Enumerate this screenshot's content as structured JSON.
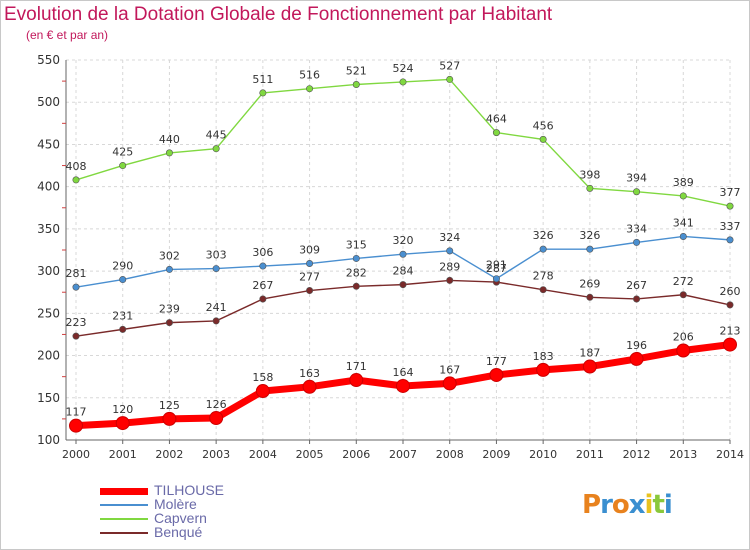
{
  "title": "Evolution de la Dotation Globale de Fonctionnement par Habitant",
  "subtitle": "(en € et par an)",
  "chart_data": {
    "type": "line",
    "x": [
      2000,
      2001,
      2002,
      2003,
      2004,
      2005,
      2006,
      2007,
      2008,
      2009,
      2010,
      2011,
      2012,
      2013,
      2014
    ],
    "ylim": [
      100,
      550
    ],
    "yticks": [
      100,
      150,
      200,
      250,
      300,
      350,
      400,
      450,
      500,
      550
    ],
    "grid": true,
    "legend_position": "bottom-left",
    "series": [
      {
        "name": "TILHOUSE",
        "color": "#ff0000",
        "values": [
          117,
          120,
          125,
          126,
          158,
          163,
          171,
          164,
          167,
          177,
          183,
          187,
          196,
          206,
          213
        ]
      },
      {
        "name": "Molère",
        "color": "#4a8fd0",
        "values": [
          281,
          290,
          302,
          303,
          306,
          309,
          315,
          320,
          324,
          291,
          326,
          326,
          334,
          341,
          337
        ]
      },
      {
        "name": "Capvern",
        "color": "#80d840",
        "values": [
          408,
          425,
          440,
          445,
          511,
          516,
          521,
          524,
          527,
          464,
          456,
          398,
          394,
          389,
          377
        ]
      },
      {
        "name": "Benqué",
        "color": "#7a2a2a",
        "values": [
          223,
          231,
          239,
          241,
          267,
          277,
          282,
          284,
          289,
          287,
          278,
          269,
          267,
          272,
          260
        ]
      }
    ]
  },
  "legend": [
    {
      "label": "TILHOUSE",
      "color": "#ff0000"
    },
    {
      "label": "Molère",
      "color": "#4a8fd0"
    },
    {
      "label": "Capvern",
      "color": "#80d840"
    },
    {
      "label": "Benqué",
      "color": "#7a2a2a"
    }
  ],
  "logo": {
    "letters": [
      "P",
      "r",
      "o",
      "x",
      "i",
      "t",
      "i"
    ],
    "colors": [
      "#e8821e",
      "#3a8fd0",
      "#e8821e",
      "#3a8fd0",
      "#e8c21e",
      "#8ac83a",
      "#3a8fd0"
    ]
  }
}
